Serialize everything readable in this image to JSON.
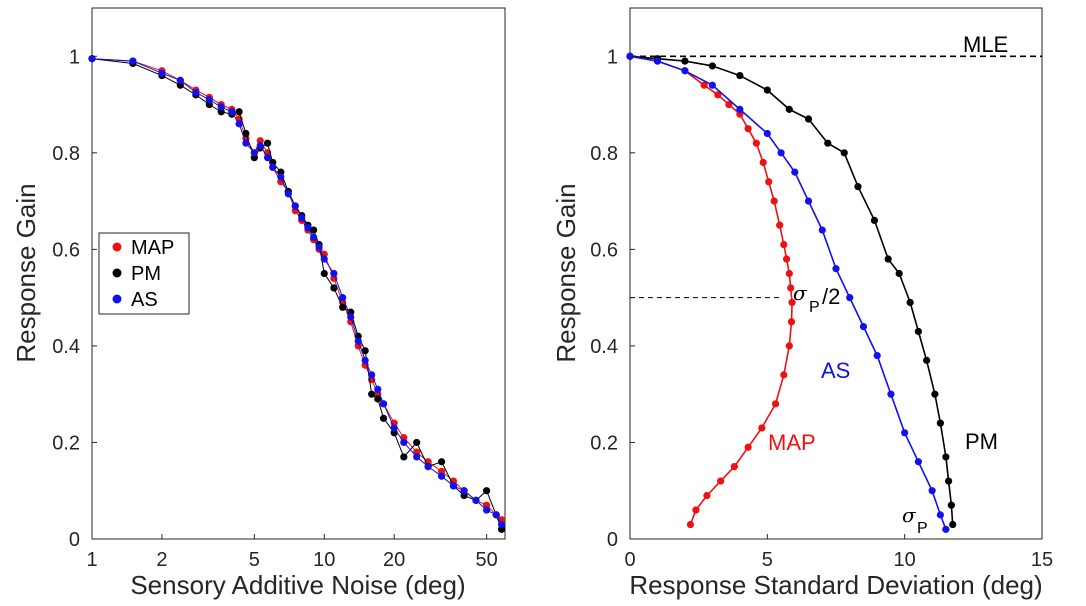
{
  "colors": {
    "MAP": "#ee1111",
    "PM": "#000000",
    "AS": "#1111ee",
    "axis": "#262626"
  },
  "chart_data": [
    {
      "type": "line",
      "xscale": "log",
      "xlabel": "Sensory Additive Noise (deg)",
      "ylabel": "Response Gain",
      "xlim": [
        1,
        60
      ],
      "ylim": [
        0,
        1.1
      ],
      "xticks": [
        1,
        2,
        5,
        10,
        20,
        50
      ],
      "xtick_labels": [
        "1",
        "2",
        "5",
        "10",
        "20",
        "50"
      ],
      "yticks": [
        0,
        0.2,
        0.4,
        0.6,
        0.8,
        1
      ],
      "ytick_labels": [
        "0",
        "0.2",
        "0.4",
        "0.6",
        "0.8",
        "1"
      ],
      "legend": {
        "position": "left-middle",
        "entries": [
          "MAP",
          "PM",
          "AS"
        ]
      },
      "x": [
        1.0,
        1.5,
        2.0,
        2.4,
        2.8,
        3.2,
        3.6,
        4.0,
        4.3,
        4.6,
        5.0,
        5.3,
        5.7,
        6.0,
        6.5,
        7.0,
        7.5,
        8.0,
        8.5,
        9.0,
        9.5,
        10.0,
        11.0,
        12.0,
        13.0,
        14.0,
        15.0,
        16.0,
        17.0,
        18.0,
        20.0,
        22.0,
        25.0,
        28.0,
        32.0,
        36.0,
        40.0,
        45.0,
        50.0,
        55.0,
        58.0
      ],
      "series": [
        {
          "name": "MAP",
          "values": [
            0.995,
            0.99,
            0.97,
            0.95,
            0.93,
            0.915,
            0.9,
            0.89,
            0.87,
            0.83,
            0.8,
            0.825,
            0.8,
            0.77,
            0.74,
            0.72,
            0.68,
            0.66,
            0.64,
            0.62,
            0.6,
            0.59,
            0.54,
            0.49,
            0.45,
            0.4,
            0.36,
            0.33,
            0.3,
            0.28,
            0.24,
            0.21,
            0.18,
            0.16,
            0.14,
            0.12,
            0.1,
            0.08,
            0.07,
            0.05,
            0.04
          ]
        },
        {
          "name": "PM",
          "values": [
            0.995,
            0.985,
            0.96,
            0.94,
            0.92,
            0.9,
            0.885,
            0.88,
            0.885,
            0.84,
            0.79,
            0.81,
            0.82,
            0.78,
            0.76,
            0.72,
            0.69,
            0.67,
            0.65,
            0.64,
            0.61,
            0.55,
            0.52,
            0.48,
            0.47,
            0.42,
            0.39,
            0.3,
            0.29,
            0.25,
            0.22,
            0.17,
            0.2,
            0.15,
            0.16,
            0.11,
            0.09,
            0.08,
            0.1,
            0.05,
            0.02
          ]
        },
        {
          "name": "AS",
          "values": [
            0.995,
            0.99,
            0.965,
            0.95,
            0.925,
            0.91,
            0.895,
            0.885,
            0.86,
            0.82,
            0.8,
            0.815,
            0.79,
            0.77,
            0.75,
            0.715,
            0.69,
            0.665,
            0.645,
            0.625,
            0.605,
            0.58,
            0.55,
            0.5,
            0.46,
            0.41,
            0.37,
            0.34,
            0.31,
            0.28,
            0.23,
            0.2,
            0.17,
            0.15,
            0.13,
            0.11,
            0.1,
            0.08,
            0.06,
            0.05,
            0.03
          ]
        }
      ]
    },
    {
      "type": "line",
      "xlabel": "Response Standard Deviation (deg)",
      "ylabel": "Response Gain",
      "xlim": [
        0,
        15
      ],
      "ylim": [
        0,
        1.1
      ],
      "xticks": [
        0,
        5,
        10,
        15
      ],
      "xtick_labels": [
        "0",
        "5",
        "10",
        "15"
      ],
      "yticks": [
        0,
        0.2,
        0.4,
        0.6,
        0.8,
        1
      ],
      "ytick_labels": [
        "0",
        "0.2",
        "0.4",
        "0.6",
        "0.8",
        "1"
      ],
      "reference_lines": [
        {
          "label": "MLE",
          "y": 1.0,
          "style": "dashed"
        },
        {
          "y": 0.5,
          "x_range": [
            0,
            5.5
          ],
          "style": "dashed"
        }
      ],
      "annotations": {
        "MAP": "MAP",
        "PM": "PM",
        "AS": "AS",
        "sigma_half_symbol": "σ",
        "sigma_half_sub": "P",
        "sigma_half_suffix": "/2",
        "sigma_symbol": "σ",
        "sigma_sub": "P"
      },
      "series": [
        {
          "name": "MAP",
          "x": [
            0.0,
            1.0,
            2.0,
            2.7,
            3.2,
            3.6,
            4.0,
            4.3,
            4.6,
            4.85,
            5.05,
            5.25,
            5.45,
            5.6,
            5.7,
            5.8,
            5.85,
            5.9,
            5.88,
            5.8,
            5.6,
            5.3,
            4.8,
            4.3,
            3.8,
            3.3,
            2.8,
            2.4,
            2.2
          ],
          "values": [
            1.0,
            0.99,
            0.97,
            0.94,
            0.92,
            0.9,
            0.88,
            0.85,
            0.82,
            0.78,
            0.74,
            0.7,
            0.65,
            0.61,
            0.58,
            0.55,
            0.52,
            0.49,
            0.45,
            0.4,
            0.34,
            0.28,
            0.23,
            0.19,
            0.15,
            0.12,
            0.09,
            0.06,
            0.03
          ]
        },
        {
          "name": "PM",
          "x": [
            0.0,
            1.0,
            2.0,
            3.0,
            4.0,
            5.0,
            5.8,
            6.5,
            7.2,
            7.8,
            8.3,
            8.9,
            9.4,
            9.8,
            10.2,
            10.5,
            10.8,
            11.1,
            11.3,
            11.5,
            11.6,
            11.7,
            11.75
          ],
          "values": [
            1.0,
            0.995,
            0.99,
            0.98,
            0.96,
            0.93,
            0.89,
            0.87,
            0.82,
            0.8,
            0.73,
            0.66,
            0.58,
            0.55,
            0.49,
            0.43,
            0.37,
            0.3,
            0.24,
            0.17,
            0.12,
            0.07,
            0.03
          ]
        },
        {
          "name": "AS",
          "x": [
            0.0,
            1.0,
            2.0,
            3.0,
            4.0,
            5.0,
            5.5,
            6.0,
            6.5,
            7.0,
            7.5,
            8.0,
            8.5,
            9.0,
            9.5,
            10.0,
            10.5,
            11.0,
            11.3,
            11.5
          ],
          "values": [
            1.0,
            0.99,
            0.97,
            0.94,
            0.89,
            0.84,
            0.8,
            0.76,
            0.7,
            0.64,
            0.56,
            0.5,
            0.44,
            0.38,
            0.3,
            0.22,
            0.16,
            0.1,
            0.05,
            0.02
          ]
        }
      ]
    }
  ]
}
